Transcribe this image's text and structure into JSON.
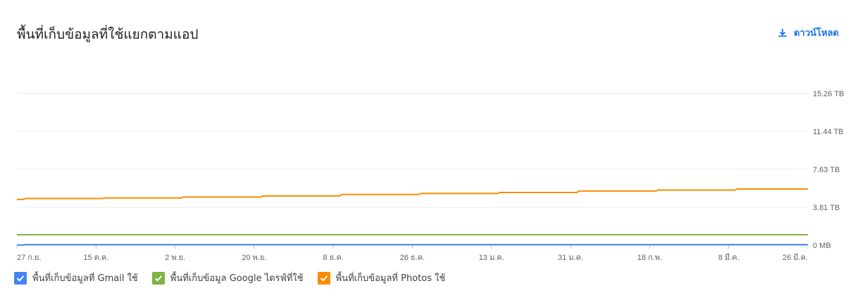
{
  "title": "พื้นที่เก็บข้อมูลที่ใช้แยกตามแอป",
  "download": {
    "label": "ดาวน์โหลด",
    "icon": "download-icon",
    "color": "#1a73e8"
  },
  "chart_data": {
    "type": "line",
    "x": [
      "27 ก.ย.",
      "15 ต.ค.",
      "2 พ.ย.",
      "20 พ.ย.",
      "8 ธ.ค.",
      "26 ธ.ค.",
      "13 ม.ค.",
      "31 ม.ค.",
      "18 ก.พ.",
      "8 มี.ค.",
      "26 มี.ค."
    ],
    "y_ticks": [
      "0 MB",
      "3.81 TB",
      "7.63 TB",
      "11.44 TB",
      "15.26 TB"
    ],
    "y_tick_values": [
      0,
      3.81,
      7.63,
      11.44,
      15.26
    ],
    "ylim": [
      0,
      15.26
    ],
    "grid": true,
    "legend_position": "bottom-left",
    "series": [
      {
        "name": "พื้นที่เก็บข้อมูลที่ Gmail ใช้",
        "color": "#4285f4",
        "values": [
          0.02,
          0.05,
          0.05,
          0.05,
          0.05,
          0.05,
          0.05,
          0.05,
          0.05,
          0.05,
          0.05
        ]
      },
      {
        "name": "พื้นที่เก็บข้อมูล Google ไดรฟ์ที่ใช้",
        "color": "#7cb342",
        "values": [
          1.05,
          1.05,
          1.05,
          1.05,
          1.05,
          1.05,
          1.05,
          1.05,
          1.05,
          1.05,
          1.05
        ]
      },
      {
        "name": "พื้นที่เก็บข้อมูลที่ Photos ใช้",
        "color": "#fb8c00",
        "values": [
          4.6,
          4.7,
          4.75,
          4.85,
          4.95,
          5.1,
          5.2,
          5.3,
          5.45,
          5.55,
          5.65
        ]
      }
    ]
  }
}
